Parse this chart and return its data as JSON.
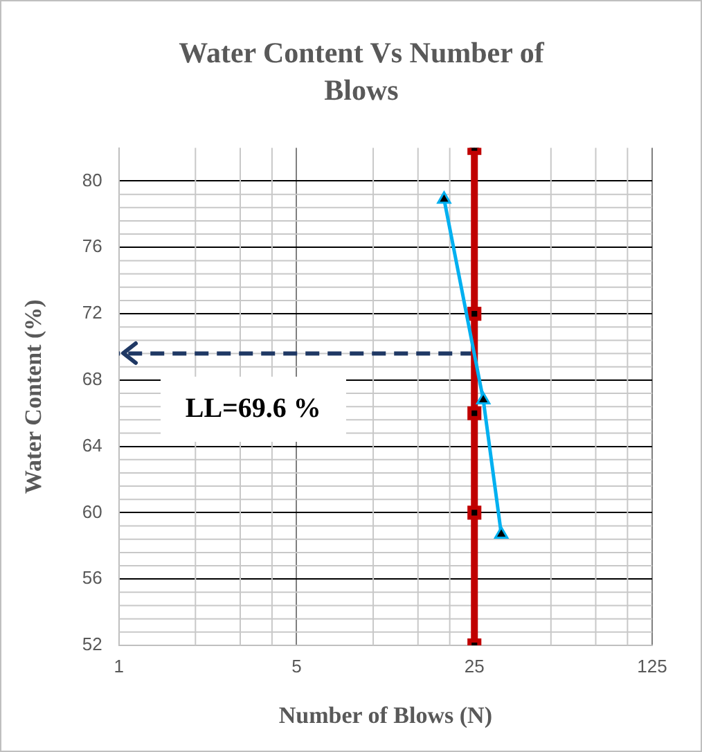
{
  "chart_data": {
    "type": "line",
    "title": "Water Content Vs Number of Blows",
    "xlabel": "Number of Blows (N)",
    "ylabel": "Water Content (%)",
    "log": "x",
    "xlim": [
      1,
      125
    ],
    "xticks": [
      1,
      5,
      25,
      125
    ],
    "ylim": [
      52,
      82
    ],
    "yticks": [
      52,
      56,
      60,
      64,
      68,
      72,
      76,
      80
    ],
    "grid": true,
    "legend": false,
    "series": [
      {
        "x": [
          19,
          27.1,
          31.9
        ],
        "values": [
          78.9,
          66.8,
          58.7
        ],
        "color": "#00b0f0",
        "marker": "triangle",
        "line_style": "solid"
      },
      {
        "x": [
          25,
          25,
          25,
          25,
          25
        ],
        "values": [
          82,
          72,
          66,
          60,
          52
        ],
        "color": "#c00000",
        "marker": "square",
        "line_style": "solid"
      },
      {
        "x": [
          25,
          1
        ],
        "values": [
          69.6,
          69.6
        ],
        "color": "#1f3864",
        "marker": "none",
        "line_style": "dashed"
      }
    ],
    "annotations": [
      "LL=69.6 %"
    ]
  }
}
